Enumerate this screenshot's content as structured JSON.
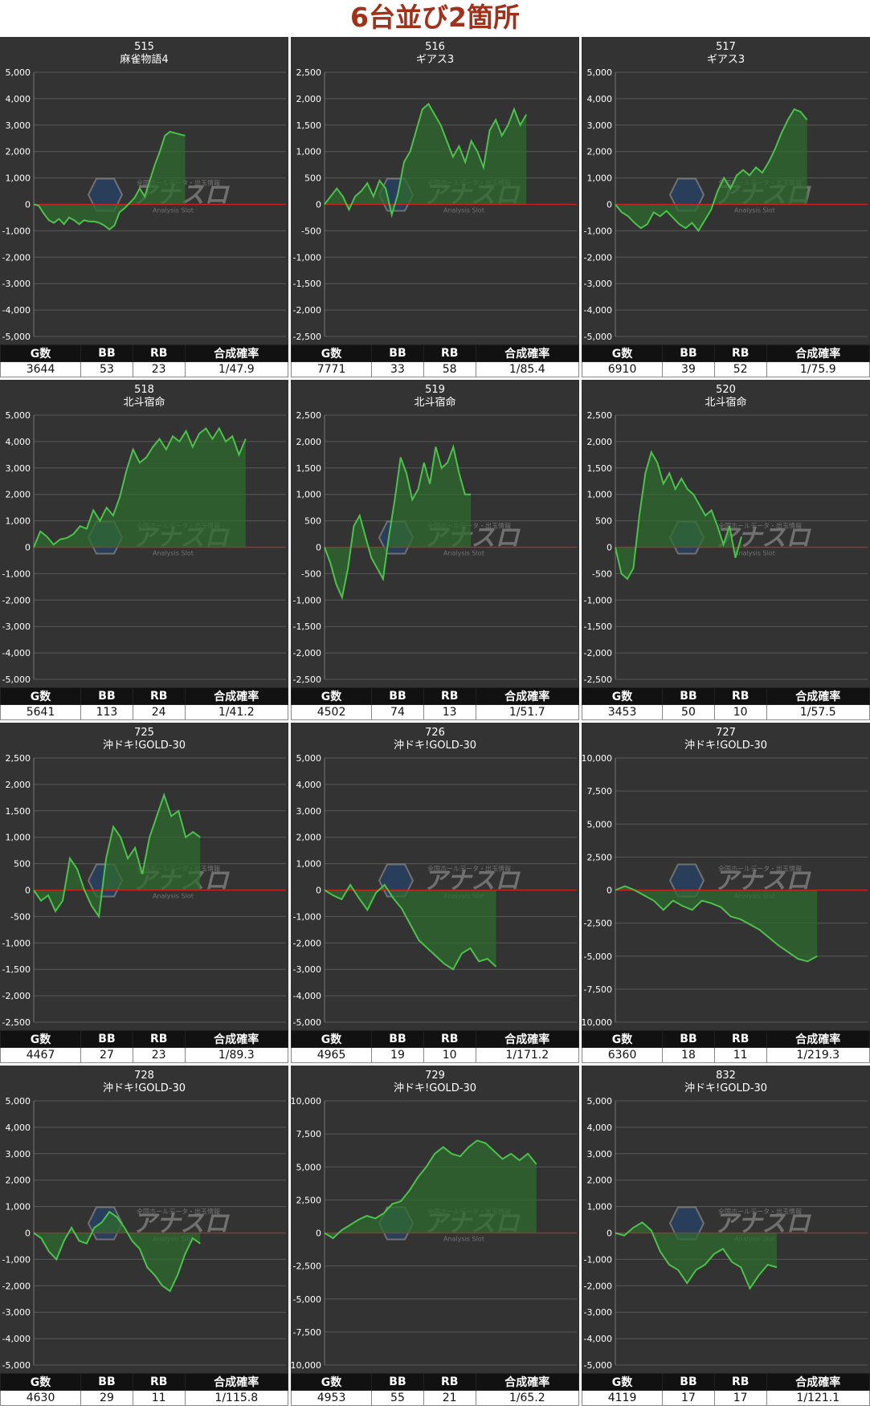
{
  "page_title": "6台並び2箇所",
  "stat_headers": [
    "G数",
    "BB",
    "RB",
    "合成確率"
  ],
  "colors": {
    "panel_bg": "#333333",
    "line": "#4cc14c",
    "fill": "#2f6b2f",
    "zero_line": "#cc2222",
    "grid": "#5a5a5a"
  },
  "watermark": {
    "logo": "アナスロ",
    "sub": "Analysis Slot",
    "top": "全国ホールデータ・出玉情報"
  },
  "panels": [
    {
      "number": "515",
      "machine": "麻雀物語4",
      "stats": {
        "g": "3644",
        "bb": "53",
        "rb": "23",
        "prob": "1/47.9"
      }
    },
    {
      "number": "516",
      "machine": "ギアス3",
      "stats": {
        "g": "7771",
        "bb": "33",
        "rb": "58",
        "prob": "1/85.4"
      }
    },
    {
      "number": "517",
      "machine": "ギアス3",
      "stats": {
        "g": "6910",
        "bb": "39",
        "rb": "52",
        "prob": "1/75.9"
      }
    },
    {
      "number": "518",
      "machine": "北斗宿命",
      "stats": {
        "g": "5641",
        "bb": "113",
        "rb": "24",
        "prob": "1/41.2"
      }
    },
    {
      "number": "519",
      "machine": "北斗宿命",
      "stats": {
        "g": "4502",
        "bb": "74",
        "rb": "13",
        "prob": "1/51.7"
      }
    },
    {
      "number": "520",
      "machine": "北斗宿命",
      "stats": {
        "g": "3453",
        "bb": "50",
        "rb": "10",
        "prob": "1/57.5"
      }
    },
    {
      "number": "725",
      "machine": "沖ドキ!GOLD-30",
      "stats": {
        "g": "4467",
        "bb": "27",
        "rb": "23",
        "prob": "1/89.3"
      }
    },
    {
      "number": "726",
      "machine": "沖ドキ!GOLD-30",
      "stats": {
        "g": "4965",
        "bb": "19",
        "rb": "10",
        "prob": "1/171.2"
      }
    },
    {
      "number": "727",
      "machine": "沖ドキ!GOLD-30",
      "stats": {
        "g": "6360",
        "bb": "18",
        "rb": "11",
        "prob": "1/219.3"
      }
    },
    {
      "number": "728",
      "machine": "沖ドキ!GOLD-30",
      "stats": {
        "g": "4630",
        "bb": "29",
        "rb": "11",
        "prob": "1/115.8"
      }
    },
    {
      "number": "729",
      "machine": "沖ドキ!GOLD-30",
      "stats": {
        "g": "4953",
        "bb": "55",
        "rb": "21",
        "prob": "1/65.2"
      }
    },
    {
      "number": "832",
      "machine": "沖ドキ!GOLD-30",
      "stats": {
        "g": "4119",
        "bb": "17",
        "rb": "17",
        "prob": "1/121.1"
      }
    }
  ],
  "chart_data": [
    {
      "type": "line",
      "title": "515 麻雀物語4",
      "ylim": [
        -5000,
        5000
      ],
      "yticks": [
        5000,
        4000,
        3000,
        2000,
        1000,
        0,
        -1000,
        -2000,
        -3000,
        -4000,
        -5000
      ],
      "x_max": 100,
      "values": [
        0,
        -50,
        -350,
        -600,
        -700,
        -550,
        -750,
        -500,
        -600,
        -750,
        -600,
        -650,
        -650,
        -700,
        -800,
        -950,
        -800,
        -300,
        -150,
        50,
        250,
        600,
        300,
        900,
        1500,
        2000,
        2600,
        2750,
        2700,
        2650,
        2600
      ],
      "x_end": 60
    },
    {
      "type": "line",
      "title": "516 ギアス3",
      "ylim": [
        -2500,
        2500
      ],
      "yticks": [
        2500,
        2000,
        1500,
        1000,
        500,
        0,
        -500,
        -1000,
        -1500,
        -2000,
        -2500
      ],
      "x_max": 100,
      "values": [
        0,
        150,
        300,
        150,
        -100,
        150,
        250,
        400,
        150,
        450,
        300,
        -200,
        200,
        800,
        1000,
        1400,
        1800,
        1900,
        1700,
        1500,
        1200,
        900,
        1100,
        800,
        1200,
        1000,
        700,
        1400,
        1600,
        1300,
        1500,
        1800,
        1500,
        1700
      ],
      "x_end": 80
    },
    {
      "type": "line",
      "title": "517 ギアス3",
      "ylim": [
        -5000,
        5000
      ],
      "yticks": [
        5000,
        4000,
        3000,
        2000,
        1000,
        0,
        -1000,
        -2000,
        -3000,
        -4000,
        -5000
      ],
      "x_max": 100,
      "values": [
        0,
        -300,
        -450,
        -700,
        -900,
        -750,
        -300,
        -450,
        -250,
        -500,
        -750,
        -900,
        -700,
        -1000,
        -600,
        -200,
        500,
        1000,
        600,
        1100,
        1300,
        1100,
        1400,
        1200,
        1600,
        2100,
        2700,
        3200,
        3600,
        3500,
        3200
      ],
      "x_end": 76
    },
    {
      "type": "line",
      "title": "518 北斗宿命",
      "ylim": [
        -5000,
        5000
      ],
      "yticks": [
        5000,
        4000,
        3000,
        2000,
        1000,
        0,
        -1000,
        -2000,
        -3000,
        -4000,
        -5000
      ],
      "x_max": 100,
      "values": [
        0,
        600,
        400,
        100,
        300,
        350,
        500,
        800,
        700,
        1400,
        1000,
        1500,
        1200,
        1900,
        2900,
        3700,
        3200,
        3400,
        3800,
        4100,
        3700,
        4200,
        4000,
        4400,
        3800,
        4300,
        4500,
        4100,
        4500,
        4000,
        4200,
        3500,
        4100
      ],
      "x_end": 84
    },
    {
      "type": "line",
      "title": "519 北斗宿命",
      "ylim": [
        -2500,
        2500
      ],
      "yticks": [
        2500,
        2000,
        1500,
        1000,
        500,
        0,
        -500,
        -1000,
        -1500,
        -2000,
        -2500
      ],
      "x_max": 100,
      "values": [
        0,
        -300,
        -700,
        -950,
        -400,
        400,
        600,
        200,
        -200,
        -400,
        -600,
        200,
        900,
        1700,
        1400,
        900,
        1100,
        1600,
        1200,
        1900,
        1500,
        1600,
        1900,
        1400,
        1000,
        1000
      ],
      "x_end": 58
    },
    {
      "type": "line",
      "title": "520 北斗宿命",
      "ylim": [
        -2500,
        2500
      ],
      "yticks": [
        2500,
        2000,
        1500,
        1000,
        500,
        0,
        -500,
        -1000,
        -1500,
        -2000,
        -2500
      ],
      "x_max": 100,
      "values": [
        0,
        -500,
        -600,
        -400,
        600,
        1400,
        1800,
        1600,
        1200,
        1400,
        1100,
        1300,
        1100,
        1000,
        800,
        600,
        700,
        400,
        50,
        400,
        -200,
        200
      ],
      "x_end": 50
    },
    {
      "type": "line",
      "title": "725 沖ドキ!GOLD-30",
      "ylim": [
        -2500,
        2500
      ],
      "yticks": [
        2500,
        2000,
        1500,
        1000,
        500,
        0,
        -500,
        -1000,
        -1500,
        -2000,
        -2500
      ],
      "x_max": 100,
      "values": [
        0,
        -200,
        -100,
        -400,
        -200,
        600,
        400,
        0,
        -300,
        -500,
        600,
        1200,
        1000,
        600,
        800,
        300,
        1000,
        1400,
        1800,
        1400,
        1500,
        1000,
        1100,
        1000
      ],
      "x_end": 66
    },
    {
      "type": "line",
      "title": "726 沖ドキ!GOLD-30",
      "ylim": [
        -5000,
        5000
      ],
      "yticks": [
        5000,
        4000,
        3000,
        2000,
        1000,
        0,
        -1000,
        -2000,
        -3000,
        -4000,
        -5000
      ],
      "x_max": 100,
      "values": [
        0,
        -200,
        -350,
        200,
        -300,
        -750,
        -100,
        200,
        -300,
        -700,
        -1300,
        -1900,
        -2200,
        -2500,
        -2800,
        -3000,
        -2400,
        -2200,
        -2700,
        -2600,
        -2900
      ],
      "x_end": 68
    },
    {
      "type": "line",
      "title": "727 沖ドキ!GOLD-30",
      "ylim": [
        -10000,
        10000
      ],
      "yticks": [
        10000,
        7500,
        5000,
        2500,
        0,
        -2500,
        -5000,
        -7500,
        -10000
      ],
      "x_max": 100,
      "values": [
        0,
        300,
        0,
        -400,
        -800,
        -1500,
        -800,
        -1200,
        -1500,
        -800,
        -1000,
        -1300,
        -2000,
        -2200,
        -2600,
        -3000,
        -3600,
        -4200,
        -4700,
        -5200,
        -5400,
        -5000
      ],
      "x_end": 80
    },
    {
      "type": "line",
      "title": "728 沖ドキ!GOLD-30",
      "ylim": [
        -5000,
        5000
      ],
      "yticks": [
        5000,
        4000,
        3000,
        2000,
        1000,
        0,
        -1000,
        -2000,
        -3000,
        -4000,
        -5000
      ],
      "x_max": 100,
      "values": [
        0,
        -200,
        -700,
        -1000,
        -300,
        200,
        -300,
        -400,
        200,
        400,
        800,
        600,
        200,
        -300,
        -600,
        -1300,
        -1600,
        -2000,
        -2200,
        -1600,
        -800,
        -200,
        -400
      ],
      "x_end": 66
    },
    {
      "type": "line",
      "title": "729 沖ドキ!GOLD-30",
      "ylim": [
        -10000,
        10000
      ],
      "yticks": [
        10000,
        7500,
        5000,
        2500,
        0,
        -2500,
        -5000,
        -7500,
        -10000
      ],
      "x_max": 100,
      "values": [
        0,
        -400,
        200,
        600,
        1000,
        1300,
        1100,
        1500,
        2200,
        2400,
        3200,
        4200,
        5000,
        6000,
        6500,
        6000,
        5800,
        6500,
        7000,
        6800,
        6200,
        5600,
        6000,
        5500,
        6000,
        5200
      ],
      "x_end": 84
    },
    {
      "type": "line",
      "title": "832 沖ドキ!GOLD-30",
      "ylim": [
        -5000,
        5000
      ],
      "yticks": [
        5000,
        4000,
        3000,
        2000,
        1000,
        0,
        -1000,
        -2000,
        -3000,
        -4000,
        -5000
      ],
      "x_max": 100,
      "values": [
        0,
        -100,
        200,
        400,
        100,
        -700,
        -1200,
        -1400,
        -1900,
        -1400,
        -1200,
        -800,
        -600,
        -1100,
        -1300,
        -2100,
        -1600,
        -1200,
        -1300
      ],
      "x_end": 64
    }
  ]
}
